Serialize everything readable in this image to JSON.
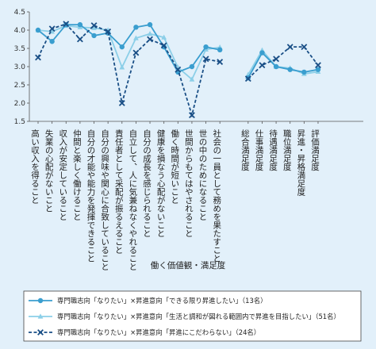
{
  "chart_data": {
    "type": "line",
    "title": "",
    "xlabel": "働く価値観・満足度",
    "ylabel": "",
    "ylim": [
      1.5,
      4.5
    ],
    "yticks": [
      "1.5",
      "2.0",
      "2.5",
      "3.0",
      "3.5",
      "4.0",
      "4.5"
    ],
    "grid": false,
    "legend_position": "bottom",
    "categories": [
      "高い収入を得ること",
      "失業の心配がないこと",
      "収入が安定していること",
      "仲間と楽しく働けること",
      "自分の才能や能力を発揮できること",
      "自分の興味や関心に合致していること",
      "責任者として采配が振るえること",
      "自立して、人に気兼ねなくやれること",
      "自分の成長を感じられること",
      "健康を損なう心配がないこと",
      "働く時間が短いこと",
      "世間からもてはやされること",
      "世の中のためになること",
      "社会の一員として務めを果たすこと",
      "総合満足度",
      "仕事満足度",
      "待遇満足度",
      "職位満足度",
      "昇進・昇格満足度",
      "評価満足度"
    ],
    "segments": [
      [
        0,
        13
      ],
      [
        14,
        19
      ]
    ],
    "series": [
      {
        "name": "専門職志向「なりたい」×昇進意向「できる限り昇進したい」（13名）",
        "color": "#3a9ecf",
        "style": "solid",
        "marker": "circle",
        "values": [
          4.0,
          3.69,
          4.15,
          4.15,
          3.85,
          3.92,
          3.54,
          4.08,
          4.15,
          3.54,
          2.85,
          3.0,
          3.54,
          3.46,
          2.69,
          3.38,
          3.0,
          2.92,
          2.85,
          2.92
        ]
      },
      {
        "name": "専門職志向「なりたい」×昇進意向「生活と調和が図れる範囲内で昇進を目指したい」（51名）",
        "color": "#8ccfe8",
        "style": "solid",
        "marker": "triangle",
        "values": [
          4.0,
          3.96,
          4.12,
          4.08,
          4.06,
          4.0,
          2.98,
          3.78,
          3.9,
          3.8,
          2.98,
          2.65,
          3.47,
          3.53,
          2.78,
          3.45,
          3.0,
          2.96,
          2.8,
          2.86
        ]
      },
      {
        "name": "専門職志向「なりたい」×昇進意向「昇進にこだわらない」（24名）",
        "color": "#1a4f86",
        "style": "dashed",
        "marker": "x",
        "values": [
          3.25,
          4.04,
          4.17,
          3.75,
          4.13,
          3.96,
          2.0,
          3.38,
          3.75,
          3.58,
          2.92,
          1.67,
          3.21,
          3.13,
          2.67,
          3.04,
          3.21,
          3.54,
          3.54,
          3.04
        ]
      }
    ]
  }
}
